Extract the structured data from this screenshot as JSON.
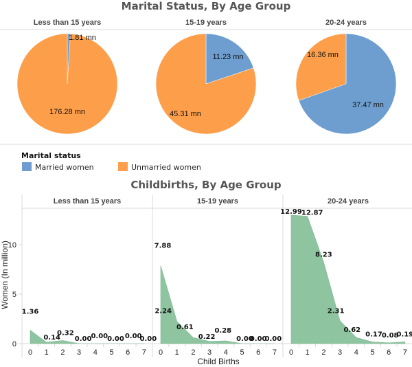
{
  "chart_data": [
    {
      "type": "pie",
      "title": "Marital Status, By Age Group",
      "facets": [
        "Less than 15 years",
        "15-19 years",
        "20-24 years"
      ],
      "legend": {
        "title": "Marital status",
        "placement": "bottom-left",
        "entries": [
          {
            "name": "Married women",
            "color": "#6e9ecf"
          },
          {
            "name": "Unmarried women",
            "color": "#fd9e4a"
          }
        ]
      },
      "series": [
        {
          "name": "Married women",
          "values": [
            1.81,
            11.23,
            37.47
          ],
          "labels": [
            "1.81 mn",
            "11.23 mn",
            "37.47 mn"
          ]
        },
        {
          "name": "Unmarried women",
          "values": [
            176.28,
            45.31,
            16.36
          ],
          "labels": [
            "176.28 mn",
            "45.31 mn",
            "16.36 mn"
          ]
        }
      ],
      "unit": "mn"
    },
    {
      "type": "area",
      "title": "Childbirths, By Age Group",
      "facets": [
        "Less than 15 years",
        "15-19 years",
        "20-24 years"
      ],
      "xlabel": "Child Births",
      "ylabel": "Women (In million)",
      "x": [
        0,
        1,
        2,
        3,
        4,
        5,
        6,
        7
      ],
      "xticks": [
        "0",
        "1",
        "2",
        "3",
        "4",
        "5",
        "6",
        "7"
      ],
      "yticks": [
        "0",
        "5",
        "10"
      ],
      "ylim": [
        0,
        13.5
      ],
      "grid": false,
      "color": "#8fc4a0",
      "series": [
        {
          "name": "Less than 15 years",
          "values": [
            1.36,
            0.14,
            0.32,
            0.0,
            0.0,
            0.0,
            0.0,
            0.0
          ],
          "labels": [
            "1.36",
            "0.14",
            "0.32",
            "0.00",
            "0.00",
            "0.00",
            "0.00",
            "0.00"
          ]
        },
        {
          "name": "15-19 years",
          "values": [
            7.88,
            2.24,
            0.61,
            0.22,
            0.28,
            0.0,
            0.0,
            0.0
          ],
          "labels": [
            "7.88",
            "2.24",
            "0.61",
            "0.22",
            "0.28",
            "0.00",
            "0.00",
            "0.00"
          ]
        },
        {
          "name": "20-24 years",
          "values": [
            12.99,
            12.87,
            8.23,
            2.31,
            0.62,
            0.17,
            0.08,
            0.19
          ],
          "labels": [
            "12.99",
            "12.87",
            "8.23",
            "2.31",
            "0.62",
            "0.17",
            "0.08",
            "0.19"
          ]
        }
      ]
    }
  ]
}
